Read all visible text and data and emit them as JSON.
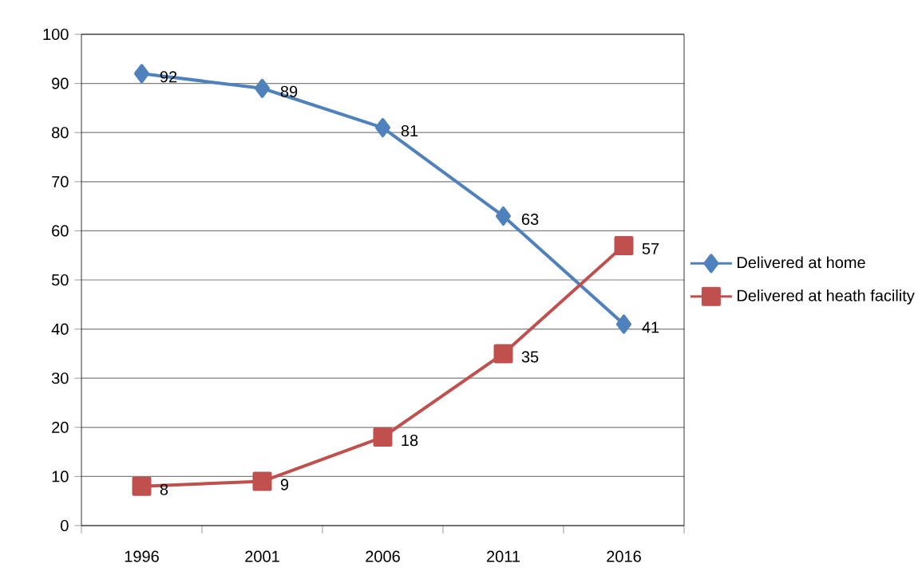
{
  "chart_data": {
    "type": "line",
    "categories": [
      "1996",
      "2001",
      "2006",
      "2011",
      "2016"
    ],
    "series": [
      {
        "name": "Delivered at home",
        "color": "#4f81bd",
        "marker": "diamond",
        "values": [
          92,
          89,
          81,
          63,
          41
        ]
      },
      {
        "name": "Delivered at heath facility",
        "color": "#c0504d",
        "marker": "square",
        "values": [
          8,
          9,
          18,
          35,
          57
        ]
      }
    ],
    "ylim": [
      0,
      100
    ],
    "yticks": [
      0,
      10,
      20,
      30,
      40,
      50,
      60,
      70,
      80,
      90,
      100
    ],
    "grid": "y",
    "legend": "right",
    "data_labels": true
  }
}
